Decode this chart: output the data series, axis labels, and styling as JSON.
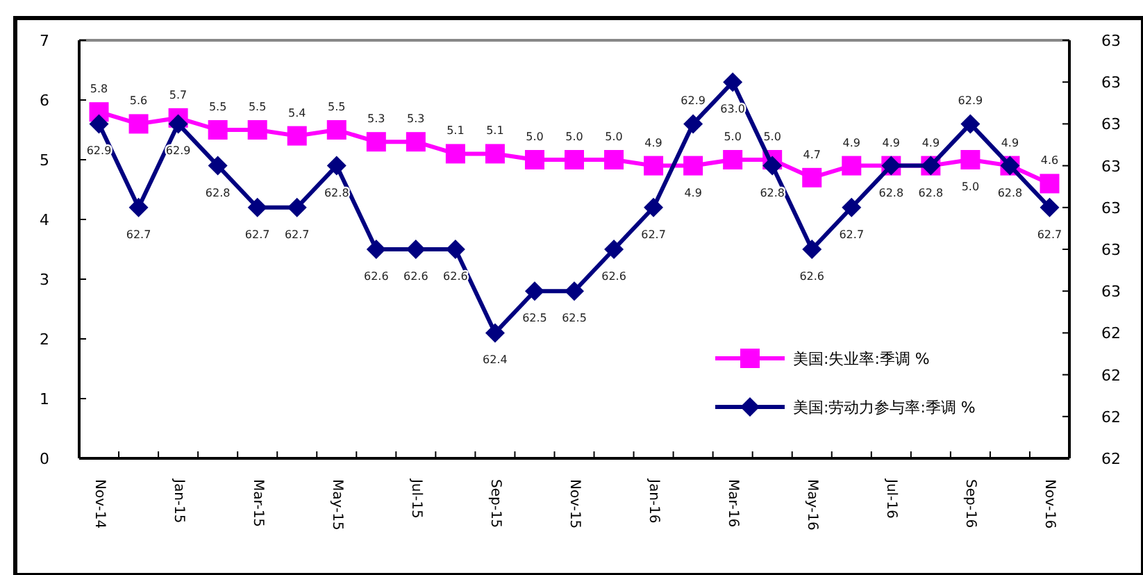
{
  "chart_data": {
    "type": "line",
    "categories": [
      "Nov-14",
      null,
      "Jan-15",
      null,
      "Mar-15",
      null,
      "May-15",
      null,
      "Jul-15",
      null,
      "Sep-15",
      null,
      "Nov-15",
      null,
      "Jan-16",
      null,
      "Mar-16",
      null,
      "May-16",
      null,
      "Jul-16",
      null,
      "Sep-16",
      null,
      "Nov-16"
    ],
    "series": [
      {
        "name": "美国:失业率:季调 %",
        "color": "#ff00ff",
        "marker": "square",
        "values": [
          5.8,
          5.6,
          5.7,
          5.5,
          5.5,
          5.4,
          5.5,
          5.3,
          5.3,
          5.1,
          5.1,
          5.0,
          5.0,
          5.0,
          4.9,
          4.9,
          5.0,
          5.0,
          4.7,
          4.9,
          4.9,
          4.9,
          5.0,
          4.9,
          4.6
        ],
        "value_labels": [
          "5.8",
          "5.6",
          "5.7",
          "5.5",
          "5.5",
          "5.4",
          "5.5",
          "5.3",
          "5.3",
          "5.1",
          "5.1",
          "5.0",
          "5.0",
          "5.0",
          "4.9",
          "4.9",
          "5.0",
          "5.0",
          "4.7",
          "4.9",
          "4.9",
          "4.9",
          "5.0",
          "4.9",
          "4.6"
        ]
      },
      {
        "name": "美国:劳动力参与率:季调 %",
        "color": "#000080",
        "marker": "diamond",
        "axis": "y2",
        "values": [
          62.9,
          62.7,
          62.9,
          62.8,
          62.7,
          62.7,
          62.8,
          62.6,
          62.6,
          62.6,
          62.4,
          62.5,
          62.5,
          62.6,
          62.7,
          62.9,
          63.0,
          62.8,
          62.6,
          62.7,
          62.8,
          62.8,
          62.9,
          62.8,
          62.7
        ],
        "value_labels": [
          "62.9",
          "62.7",
          "62.9",
          "62.8",
          "62.7",
          "62.7",
          "62.8",
          "62.6",
          "62.6",
          "62.6",
          "62.4",
          "62.5",
          "62.5",
          "62.6",
          "62.7",
          "62.9",
          "63.0",
          "62.8",
          "62.6",
          "62.7",
          "62.8",
          "62.8",
          "62.9",
          "62.8",
          "62.7"
        ]
      }
    ],
    "ylim": [
      0,
      7
    ],
    "yticks": [
      0,
      1,
      2,
      3,
      4,
      5,
      6,
      7
    ],
    "y2lim": [
      62.1,
      63.1
    ],
    "y2ticks": [
      {
        "value": 62.1,
        "label": "62"
      },
      {
        "value": 62.2,
        "label": "62"
      },
      {
        "value": 62.3,
        "label": "62"
      },
      {
        "value": 62.4,
        "label": "62"
      },
      {
        "value": 62.5,
        "label": "63"
      },
      {
        "value": 62.6,
        "label": "63"
      },
      {
        "value": 62.7,
        "label": "63"
      },
      {
        "value": 62.8,
        "label": "63"
      },
      {
        "value": 62.9,
        "label": "63"
      },
      {
        "value": 63.0,
        "label": "63"
      },
      {
        "value": 63.1,
        "label": "63"
      }
    ],
    "legend": "bottom right",
    "grid": false,
    "line_style": "solid"
  }
}
